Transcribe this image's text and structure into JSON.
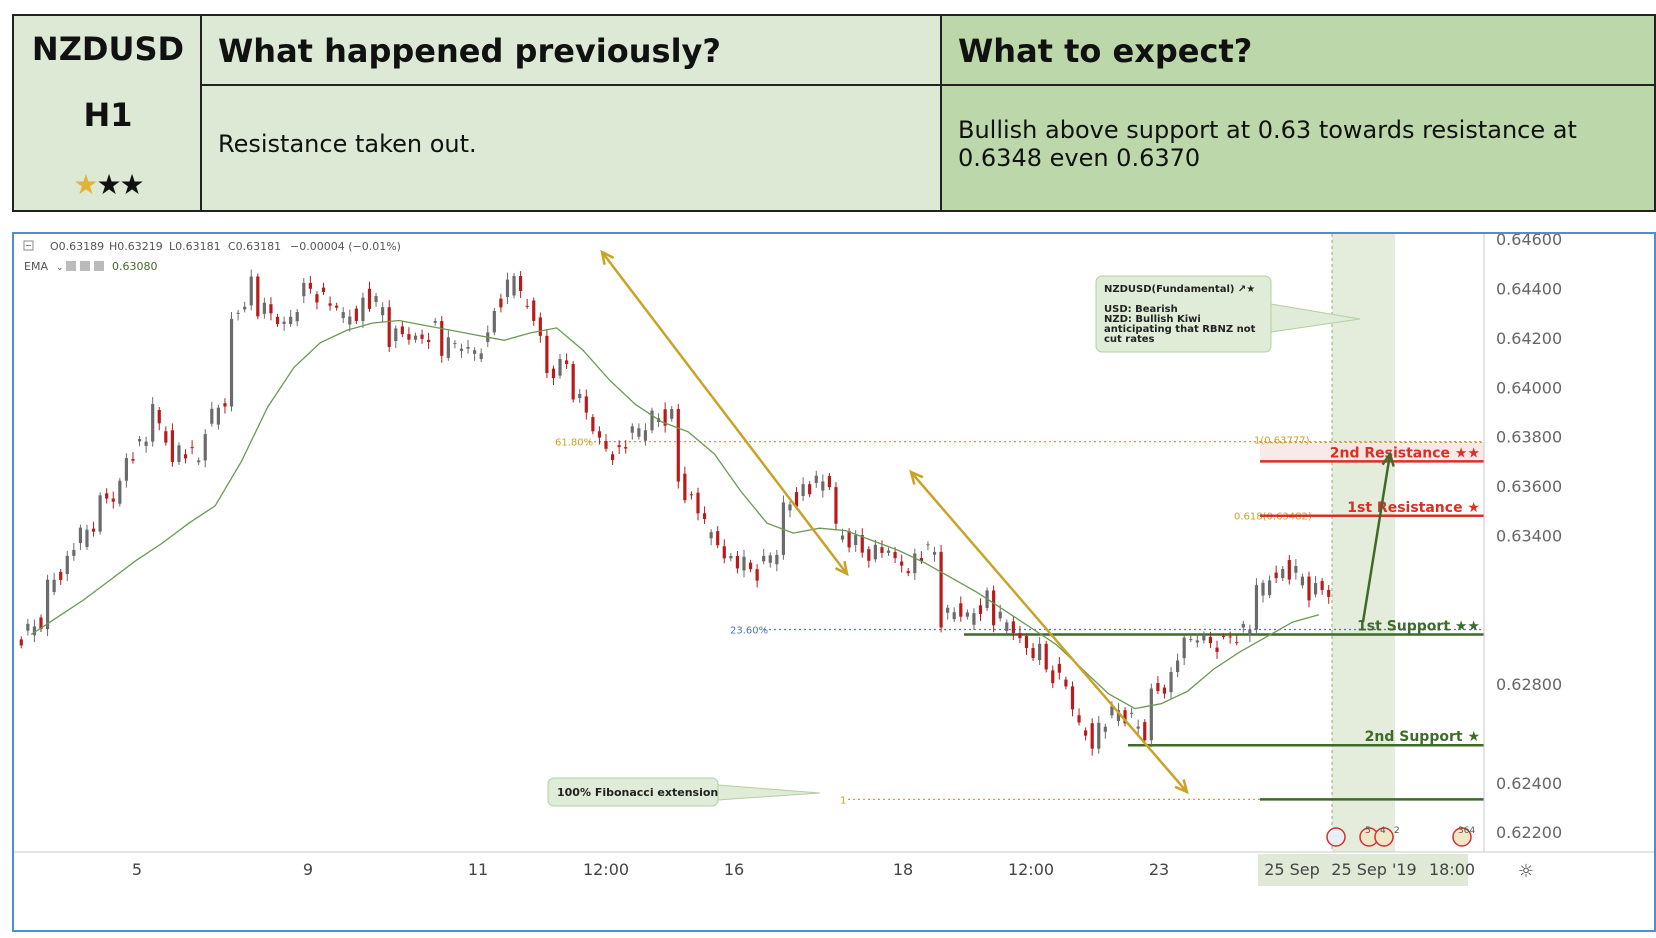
{
  "header": {
    "symbol": "NZDUSD",
    "timeframe": "H1",
    "stars": {
      "gold": "★",
      "black": "★★"
    },
    "prev_title": "What happened previously?",
    "prev_text": "Resistance taken out.",
    "expect_title": "What to expect?",
    "expect_text": "Bullish above support at 0.63 towards resistance at 0.6348 even 0.6370"
  },
  "colors": {
    "resistance": "#d93025",
    "support": "#3e6b2a",
    "fib": "#c9a227",
    "price": "#e53935",
    "ema": "#6a9a52",
    "bull": "#6b6b6b",
    "bear": "#b71c1c",
    "frame": "#4a90d9"
  },
  "chart_data": {
    "type": "line",
    "title": "",
    "ohlc": {
      "o": "O0.63189",
      "h": "H0.63219",
      "l": "L0.63181",
      "c": "C0.63181",
      "chg": "−0.00004 (−0.01%)"
    },
    "ema_label": "EMA",
    "ema_value": "0.63080",
    "ylim": [
      0.6212,
      0.6462
    ],
    "yticks": [
      "0.64600",
      "0.64400",
      "0.64200",
      "0.64000",
      "0.63800",
      "0.63600",
      "0.63400",
      "0.62800",
      "0.62400",
      "0.62200"
    ],
    "xlabels": [
      "5",
      "9",
      "11",
      "12:00",
      "16",
      "18",
      "12:00",
      "23",
      "25 Sep",
      "25 Sep '19",
      "18:00"
    ],
    "price_path": [
      [
        0.6298,
        0.6305
      ],
      [
        0.6318,
        0.6329
      ],
      [
        0.6335,
        0.6343
      ],
      [
        0.6352,
        0.6358
      ],
      [
        0.6371,
        0.6378
      ],
      [
        0.6394,
        0.6374
      ],
      [
        0.6379,
        0.6369
      ],
      [
        0.6382,
        0.6395
      ],
      [
        0.6421,
        0.6442
      ],
      [
        0.6433,
        0.6427
      ],
      [
        0.6419,
        0.6438
      ],
      [
        0.6444,
        0.6433
      ],
      [
        0.6427,
        0.6431
      ],
      [
        0.6438,
        0.6431
      ],
      [
        0.642,
        0.6422
      ],
      [
        0.6418,
        0.6424
      ],
      [
        0.6415,
        0.6417
      ],
      [
        0.6412,
        0.6418
      ],
      [
        0.6428,
        0.6445
      ],
      [
        0.6438,
        0.6425
      ],
      [
        0.6405,
        0.6408
      ],
      [
        0.6404,
        0.6385
      ],
      [
        0.638,
        0.6373
      ],
      [
        0.6376,
        0.6384
      ],
      [
        0.6388,
        0.6387
      ],
      [
        0.6368,
        0.6349
      ],
      [
        0.6345,
        0.6335
      ],
      [
        0.6334,
        0.6325
      ],
      [
        0.6323,
        0.6335
      ],
      [
        0.635,
        0.6358
      ],
      [
        0.6359,
        0.6361
      ],
      [
        0.6344,
        0.6336
      ],
      [
        0.6335,
        0.6333
      ],
      [
        0.633,
        0.6329
      ],
      [
        0.6333,
        0.6332
      ],
      [
        0.6306,
        0.631
      ],
      [
        0.6305,
        0.6315
      ],
      [
        0.6308,
        0.6302
      ],
      [
        0.6297,
        0.6292
      ],
      [
        0.629,
        0.6279
      ],
      [
        0.6268,
        0.6258
      ],
      [
        0.6263,
        0.6268
      ],
      [
        0.6271,
        0.626
      ],
      [
        0.6275,
        0.6282
      ],
      [
        0.629,
        0.6299
      ],
      [
        0.6298,
        0.6295
      ],
      [
        0.63,
        0.6302
      ],
      [
        0.6312,
        0.6327
      ],
      [
        0.6328,
        0.6322
      ],
      [
        0.6318,
        0.6318
      ]
    ],
    "ema_path": [
      0.63,
      0.6307,
      0.6314,
      0.6322,
      0.633,
      0.6337,
      0.6345,
      0.6352,
      0.637,
      0.6392,
      0.6408,
      0.6418,
      0.6423,
      0.6426,
      0.6427,
      0.6425,
      0.6423,
      0.6421,
      0.6419,
      0.6422,
      0.6424,
      0.6415,
      0.6403,
      0.6393,
      0.6386,
      0.6382,
      0.6373,
      0.6358,
      0.6345,
      0.6341,
      0.6343,
      0.6342,
      0.6338,
      0.6334,
      0.6329,
      0.6323,
      0.6317,
      0.631,
      0.6303,
      0.6296,
      0.6286,
      0.6276,
      0.627,
      0.6272,
      0.6277,
      0.6286,
      0.6293,
      0.6299,
      0.6305,
      0.6308
    ],
    "levels": [
      {
        "name": "2nd Resistance ★★",
        "value": "0.63700",
        "kind": "resistance"
      },
      {
        "name": "1st Resistance ★",
        "value": "0.63480",
        "kind": "resistance"
      },
      {
        "name": "",
        "value": "0.63181",
        "kind": "price"
      },
      {
        "name": "1st Support ★★",
        "value": "0.63000",
        "kind": "support"
      },
      {
        "name": "2nd Support ★",
        "value": "0.62552",
        "kind": "support"
      },
      {
        "name": "",
        "value": "0.62333",
        "kind": "support"
      }
    ],
    "fib": [
      {
        "label": "61.80%",
        "y": 0.6378
      },
      {
        "label": "23.60%",
        "y": 0.6302
      },
      {
        "label": "1",
        "y": 0.62333
      },
      {
        "label": "1(0.63777)",
        "y": 0.63777
      },
      {
        "label": "0.618(0.63482)",
        "y": 0.63482
      }
    ],
    "fundamental": {
      "title": "NZDUSD(Fundamental) ↗★",
      "lines": [
        "USD: Bearish",
        "NZD: Bullish Kiwi",
        "anticipating that RBNZ not",
        "cut rates"
      ]
    },
    "fib_note": "100% Fibonacci extension",
    "cal_counts": [
      "5",
      "4",
      "2",
      "364"
    ]
  }
}
